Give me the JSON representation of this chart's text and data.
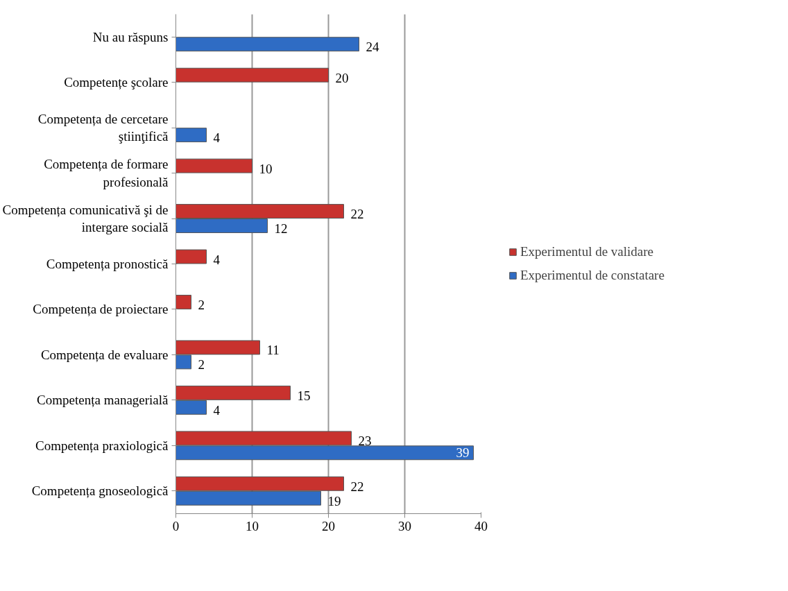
{
  "chart_data": {
    "type": "bar",
    "orientation": "horizontal",
    "categories": [
      "Nu au răspuns",
      "Competențe şcolare",
      "Competența de cercetare ştiinţifică",
      "Competența de formare profesională",
      "Competența comunicativă şi de intergare socială",
      "Competența pronostică",
      "Competența de proiectare",
      "Competența de evaluare",
      "Competența managerială",
      "Competența praxiologică",
      "Competența gnoseologică"
    ],
    "series": [
      {
        "name": "Experimentul de validare",
        "color": "#c8322e",
        "values": [
          null,
          20,
          null,
          10,
          22,
          4,
          2,
          11,
          15,
          23,
          22
        ]
      },
      {
        "name": "Experimentul de constatare",
        "color": "#2f6cc4",
        "values": [
          24,
          null,
          4,
          null,
          12,
          null,
          null,
          2,
          4,
          39,
          19
        ]
      }
    ],
    "xlim": [
      0,
      40
    ],
    "xticks": [
      0,
      10,
      20,
      30,
      40
    ],
    "grid": "x",
    "legend": "right",
    "data_labels": true
  }
}
